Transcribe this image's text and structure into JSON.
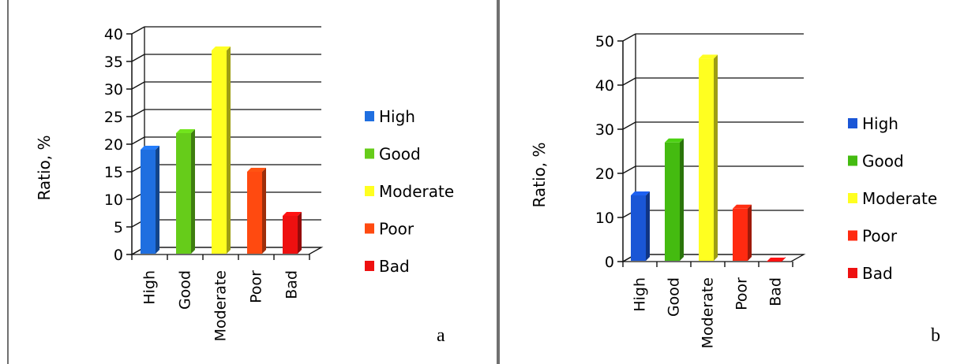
{
  "chart_data": [
    {
      "type": "bar",
      "panel_label": "a",
      "ylabel": "Ratio, %",
      "categories": [
        "High",
        "Good",
        "Moderate",
        "Poor",
        "Bad"
      ],
      "values": [
        19,
        22,
        37,
        15,
        7
      ],
      "ylim": [
        0,
        40
      ],
      "yticks": [
        0,
        5,
        10,
        15,
        20,
        25,
        30,
        35,
        40
      ],
      "legend": [
        "High",
        "Good",
        "Moderate",
        "Poor",
        "Bad"
      ],
      "legend_position": "right",
      "grid": true,
      "colors": [
        "#1f6fe0",
        "#66cc1a",
        "#ffff20",
        "#ff4a10",
        "#ee1010"
      ]
    },
    {
      "type": "bar",
      "panel_label": "b",
      "ylabel": "Ratio, %",
      "categories": [
        "High",
        "Good",
        "Moderate",
        "Poor",
        "Bad"
      ],
      "values": [
        15,
        27,
        46,
        12,
        0
      ],
      "ylim": [
        0,
        50
      ],
      "yticks": [
        0,
        10,
        20,
        30,
        40,
        50
      ],
      "legend": [
        "High",
        "Good",
        "Moderate",
        "Poor",
        "Bad"
      ],
      "legend_position": "right",
      "grid": true,
      "colors": [
        "#1a56d6",
        "#44bb10",
        "#ffff20",
        "#ff2a10",
        "#ee1010"
      ]
    }
  ]
}
